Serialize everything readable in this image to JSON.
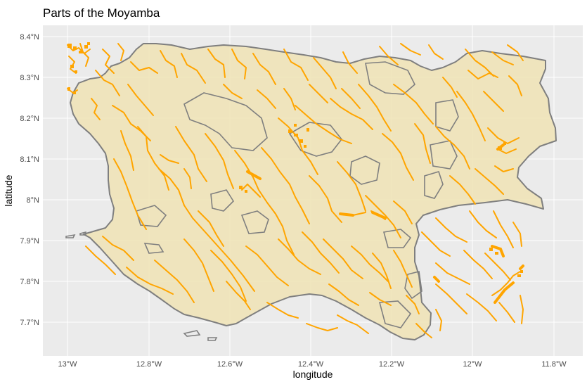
{
  "title": "Parts of the Moyamba",
  "axes": {
    "x_label": "longitude",
    "y_label": "latitude",
    "x_ticks": [
      "13°W",
      "12.8°W",
      "12.6°W",
      "12.4°W",
      "12.2°W",
      "12°W",
      "11.8°W"
    ],
    "y_ticks": [
      "8.4°N",
      "8.3°N",
      "8.2°N",
      "8.1°N",
      "8°N",
      "7.9°N",
      "7.8°N",
      "7.7°N"
    ],
    "x_range": [
      -13.06,
      -11.76
    ],
    "y_range": [
      7.64,
      8.43
    ]
  },
  "colors": {
    "panel": "#ebebeb",
    "grid": "#ffffff",
    "district_fill": "#f0e3b5",
    "district_border": "#7f7f7f",
    "rivers": "#ffa500"
  },
  "layers": [
    {
      "name": "district-boundary",
      "geometry": "polygon"
    },
    {
      "name": "waterways",
      "geometry": "lines"
    }
  ]
}
